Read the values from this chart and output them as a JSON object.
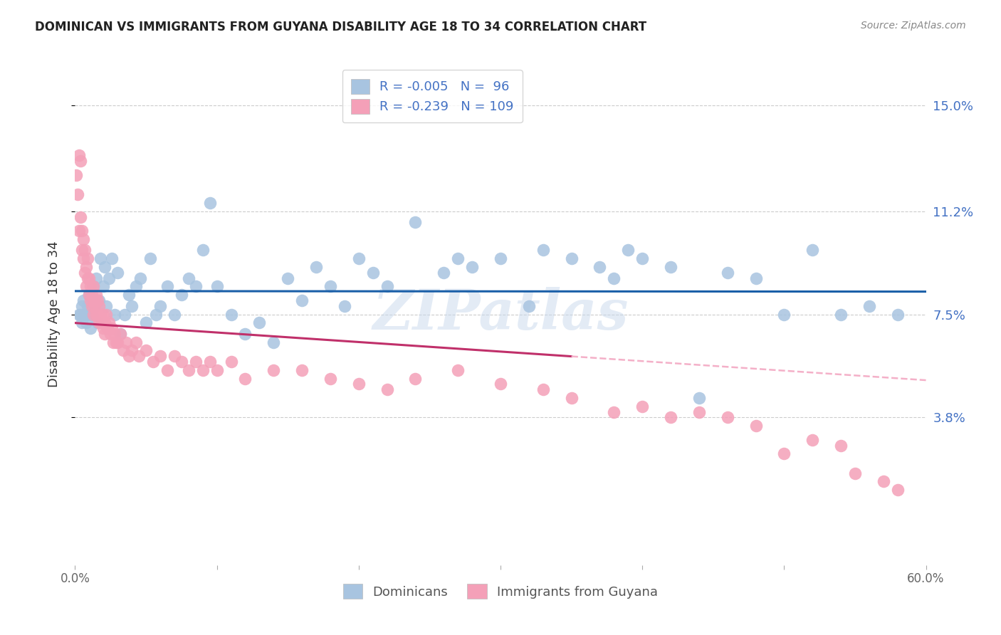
{
  "title": "DOMINICAN VS IMMIGRANTS FROM GUYANA DISABILITY AGE 18 TO 34 CORRELATION CHART",
  "source": "Source: ZipAtlas.com",
  "ylabel": "Disability Age 18 to 34",
  "ytick_values": [
    3.8,
    7.5,
    11.2,
    15.0
  ],
  "xlim": [
    0.0,
    60.0
  ],
  "ylim": [
    -1.5,
    16.5
  ],
  "color_dominican": "#a8c4e0",
  "color_guyana": "#f4a0b8",
  "trendline_dom_color": "#1a5fa8",
  "trendline_guy_solid": "#c0306a",
  "trendline_guy_dashed": "#f4b0c8",
  "watermark": "ZIPatlas",
  "dom_r": "-0.005",
  "dom_n": "96",
  "guy_r": "-0.239",
  "guy_n": "109",
  "dominican_x": [
    0.3,
    0.4,
    0.5,
    0.5,
    0.6,
    0.7,
    0.8,
    0.9,
    1.0,
    1.0,
    1.1,
    1.2,
    1.3,
    1.4,
    1.5,
    1.6,
    1.7,
    1.8,
    2.0,
    2.1,
    2.2,
    2.4,
    2.6,
    2.8,
    3.0,
    3.2,
    3.5,
    3.8,
    4.0,
    4.3,
    4.6,
    5.0,
    5.3,
    5.7,
    6.0,
    6.5,
    7.0,
    7.5,
    8.0,
    8.5,
    9.0,
    9.5,
    10.0,
    11.0,
    12.0,
    13.0,
    14.0,
    15.0,
    16.0,
    17.0,
    18.0,
    19.0,
    20.0,
    21.0,
    22.0,
    24.0,
    26.0,
    27.0,
    28.0,
    30.0,
    32.0,
    33.0,
    35.0,
    37.0,
    38.0,
    39.0,
    40.0,
    42.0,
    44.0,
    46.0,
    48.0,
    50.0,
    52.0,
    54.0,
    56.0,
    58.0
  ],
  "dominican_y": [
    7.5,
    7.5,
    7.8,
    7.2,
    8.0,
    7.5,
    7.2,
    7.8,
    7.5,
    8.2,
    7.0,
    7.5,
    8.5,
    7.8,
    8.8,
    7.2,
    8.0,
    9.5,
    8.5,
    9.2,
    7.8,
    8.8,
    9.5,
    7.5,
    9.0,
    6.8,
    7.5,
    8.2,
    7.8,
    8.5,
    8.8,
    7.2,
    9.5,
    7.5,
    7.8,
    8.5,
    7.5,
    8.2,
    8.8,
    8.5,
    9.8,
    11.5,
    8.5,
    7.5,
    6.8,
    7.2,
    6.5,
    8.8,
    8.0,
    9.2,
    8.5,
    7.8,
    9.5,
    9.0,
    8.5,
    10.8,
    9.0,
    9.5,
    9.2,
    9.5,
    7.8,
    9.8,
    9.5,
    9.2,
    8.8,
    9.8,
    9.5,
    9.2,
    4.5,
    9.0,
    8.8,
    7.5,
    9.8,
    7.5,
    7.8,
    7.5
  ],
  "guyana_x": [
    0.1,
    0.2,
    0.3,
    0.3,
    0.4,
    0.4,
    0.5,
    0.5,
    0.6,
    0.6,
    0.7,
    0.7,
    0.8,
    0.8,
    0.9,
    0.9,
    1.0,
    1.0,
    1.1,
    1.1,
    1.2,
    1.2,
    1.3,
    1.3,
    1.4,
    1.4,
    1.5,
    1.5,
    1.6,
    1.6,
    1.7,
    1.7,
    1.8,
    1.9,
    2.0,
    2.0,
    2.1,
    2.1,
    2.2,
    2.3,
    2.4,
    2.5,
    2.6,
    2.7,
    2.8,
    2.9,
    3.0,
    3.2,
    3.4,
    3.6,
    3.8,
    4.0,
    4.3,
    4.5,
    5.0,
    5.5,
    6.0,
    6.5,
    7.0,
    7.5,
    8.0,
    8.5,
    9.0,
    9.5,
    10.0,
    11.0,
    12.0,
    14.0,
    16.0,
    18.0,
    20.0,
    22.0,
    24.0,
    27.0,
    30.0,
    33.0,
    35.0,
    38.0,
    40.0,
    42.0,
    44.0,
    46.0,
    48.0,
    50.0,
    52.0,
    54.0,
    55.0,
    57.0,
    58.0
  ],
  "guyana_y": [
    12.5,
    11.8,
    13.2,
    10.5,
    11.0,
    13.0,
    9.8,
    10.5,
    9.5,
    10.2,
    9.0,
    9.8,
    8.5,
    9.2,
    8.8,
    9.5,
    8.2,
    8.8,
    8.0,
    8.5,
    7.8,
    8.2,
    8.5,
    7.5,
    8.0,
    7.8,
    7.5,
    8.2,
    7.5,
    8.0,
    7.2,
    7.8,
    7.5,
    7.2,
    7.0,
    7.5,
    6.8,
    7.2,
    7.5,
    7.0,
    7.2,
    6.8,
    7.0,
    6.5,
    6.8,
    6.5,
    6.5,
    6.8,
    6.2,
    6.5,
    6.0,
    6.2,
    6.5,
    6.0,
    6.2,
    5.8,
    6.0,
    5.5,
    6.0,
    5.8,
    5.5,
    5.8,
    5.5,
    5.8,
    5.5,
    5.8,
    5.2,
    5.5,
    5.5,
    5.2,
    5.0,
    4.8,
    5.2,
    5.5,
    5.0,
    4.8,
    4.5,
    4.0,
    4.2,
    3.8,
    4.0,
    3.8,
    3.5,
    2.5,
    3.0,
    2.8,
    1.8,
    1.5,
    1.2
  ]
}
